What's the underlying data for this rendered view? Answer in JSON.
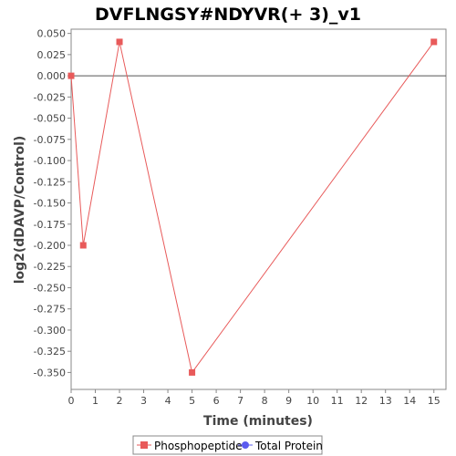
{
  "chart_data": {
    "type": "line",
    "title": "DVFLNGSY#NDYVR(+ 3)_v1",
    "xlabel": "Time (minutes)",
    "ylabel": "log2(dDAVP/Control)",
    "xlim": [
      0,
      15.5
    ],
    "ylim": [
      -0.37,
      0.055
    ],
    "x_ticks": [
      0,
      1,
      2,
      3,
      4,
      5,
      6,
      7,
      8,
      9,
      10,
      11,
      12,
      13,
      14,
      15
    ],
    "y_ticks": [
      0.05,
      0.025,
      0.0,
      -0.025,
      -0.05,
      -0.075,
      -0.1,
      -0.125,
      -0.15,
      -0.175,
      -0.2,
      -0.225,
      -0.25,
      -0.275,
      -0.3,
      -0.325,
      -0.35
    ],
    "x_tick_labels": [
      "0",
      "1",
      "2",
      "3",
      "4",
      "5",
      "6",
      "7",
      "8",
      "9",
      "10",
      "11",
      "12",
      "13",
      "14",
      "15"
    ],
    "y_tick_labels": [
      "0.050",
      "0.025",
      "0.000",
      "-0.025",
      "-0.050",
      "-0.075",
      "-0.100",
      "-0.125",
      "-0.150",
      "-0.175",
      "-0.200",
      "-0.225",
      "-0.250",
      "-0.275",
      "-0.300",
      "-0.325",
      "-0.350"
    ],
    "zero_line": true,
    "grid": false,
    "legend_position": "bottom-center",
    "series": [
      {
        "name": "Phosphopeptide",
        "color": "#e85a5a",
        "marker": "square",
        "x": [
          0,
          0.5,
          2,
          5,
          15
        ],
        "y": [
          0.0,
          -0.2,
          0.04,
          -0.35,
          0.04
        ]
      },
      {
        "name": "Total Protein",
        "color": "#5b5bef",
        "marker": "circle",
        "x": [],
        "y": []
      }
    ]
  }
}
